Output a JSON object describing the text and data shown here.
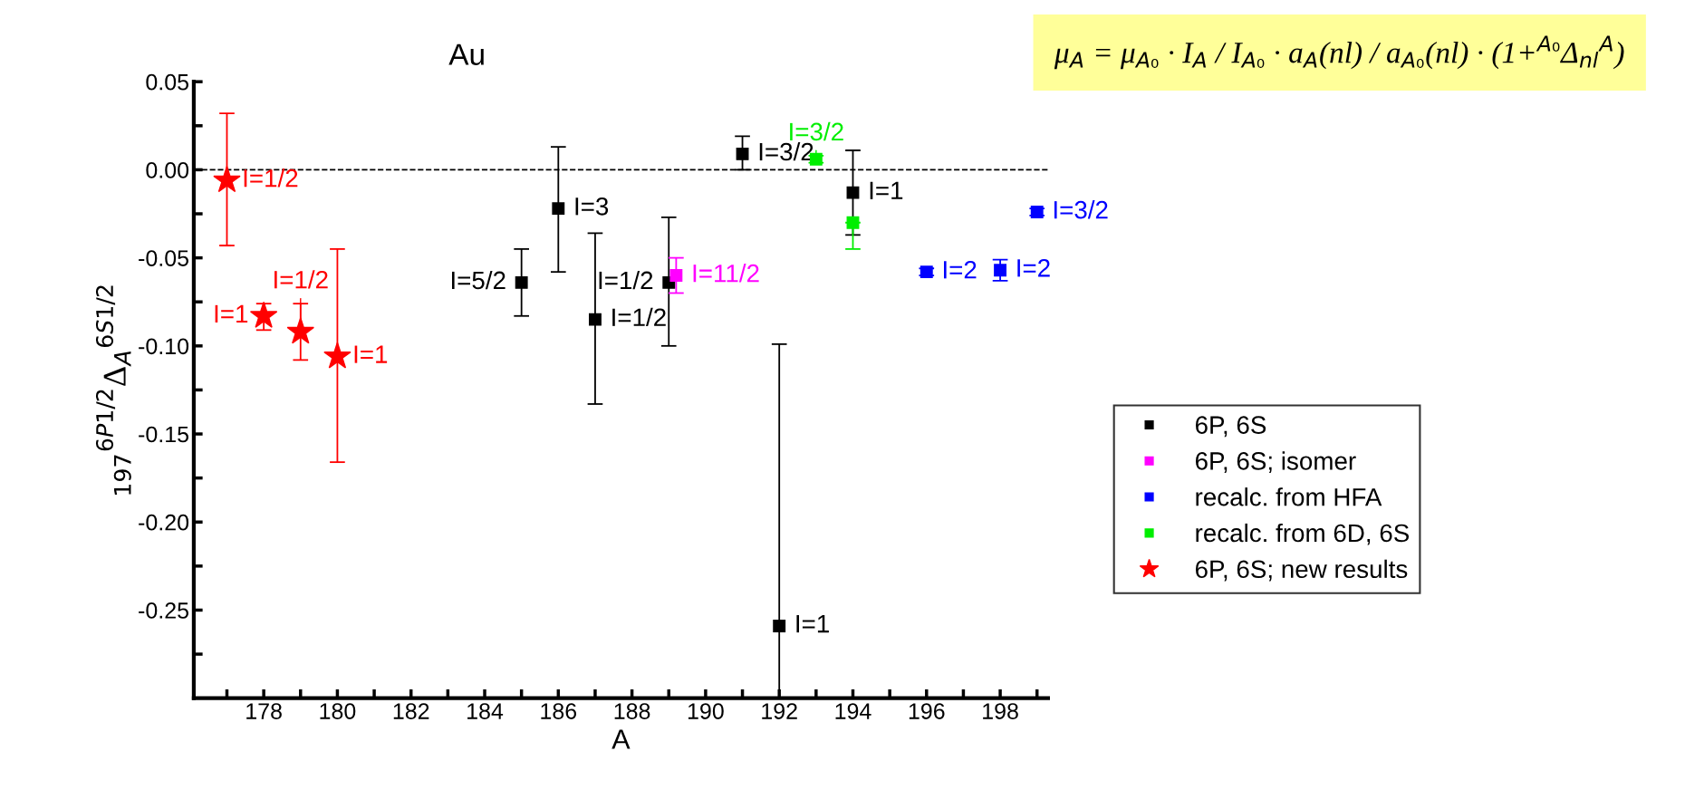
{
  "chart_data": {
    "type": "scatter",
    "title": "Au",
    "xlabel": "A",
    "ylabel": "$_{197}$$^{6P1/2}$Δ$_{A}$$^{6S1/2}$",
    "xlim": [
      176.1,
      199.3
    ],
    "ylim": [
      -0.3,
      0.05
    ],
    "xticks": [
      {
        "value": 177,
        "label": null
      },
      178,
      {
        "value": 179,
        "label": null
      },
      180,
      {
        "value": 181,
        "label": null
      },
      182,
      {
        "value": 183,
        "label": null
      },
      184,
      {
        "value": 185,
        "label": null
      },
      186,
      {
        "value": 187,
        "label": null
      },
      188,
      {
        "value": 189,
        "label": null
      },
      190,
      {
        "value": 191,
        "label": null
      },
      192,
      {
        "value": 193,
        "label": null
      },
      194,
      {
        "value": 195,
        "label": null
      },
      196,
      {
        "value": 197,
        "label": null
      },
      198,
      {
        "value": 199,
        "label": null
      }
    ],
    "yticks": [
      {
        "value": 0.05,
        "label": "0.05"
      },
      {
        "value": 0.025,
        "label": null
      },
      {
        "value": 0.0,
        "label": "0.00"
      },
      {
        "value": -0.025,
        "label": null
      },
      {
        "value": -0.05,
        "label": "-0.05"
      },
      {
        "value": -0.075,
        "label": null
      },
      {
        "value": -0.1,
        "label": "-0.10"
      },
      {
        "value": -0.125,
        "label": null
      },
      {
        "value": -0.15,
        "label": "-0.15"
      },
      {
        "value": -0.175,
        "label": null
      },
      {
        "value": -0.2,
        "label": "-0.20"
      },
      {
        "value": -0.225,
        "label": null
      },
      {
        "value": -0.25,
        "label": "-0.25"
      },
      {
        "value": -0.275,
        "label": null
      }
    ],
    "grid": false,
    "legend": "bottom right",
    "series": [
      {
        "name": "6P, 6S",
        "color": "#000000",
        "marker": "square",
        "x": [
          185,
          186,
          187,
          189,
          191,
          192,
          194
        ],
        "values": [
          -0.064,
          -0.022,
          -0.085,
          -0.064,
          0.009,
          -0.259,
          -0.013
        ],
        "errors": [
          [
            -0.083,
            -0.045
          ],
          [
            -0.058,
            0.013
          ],
          [
            -0.133,
            -0.036
          ],
          [
            -0.1,
            -0.027
          ],
          [
            0.0,
            0.019
          ],
          [
            -0.3,
            -0.099
          ],
          [
            -0.037,
            0.011
          ]
        ]
      },
      {
        "name": "6P, 6S; isomer",
        "color": "#ff00ff",
        "marker": "square",
        "x": [
          189.2
        ],
        "values": [
          -0.06
        ],
        "errors": [
          [
            -0.07,
            -0.05
          ]
        ]
      },
      {
        "name": "recalc. from HFA",
        "color": "#0000ff",
        "marker": "square",
        "x": [
          196,
          198,
          199
        ],
        "values": [
          -0.058,
          -0.057,
          -0.024
        ],
        "errors": [
          0.002,
          [
            -0.063,
            -0.051
          ],
          0.002
        ]
      },
      {
        "name": "recalc. from 6D, 6S",
        "color": "#00ee00",
        "marker": "square",
        "x": [
          193,
          194
        ],
        "values": [
          0.006,
          -0.03
        ],
        "errors": [
          0.002,
          [
            -0.045,
            -0.03
          ]
        ]
      },
      {
        "name": "6P, 6S; new results",
        "color": "#ff0000",
        "marker": "star",
        "x": [
          177,
          178,
          179,
          180
        ],
        "values": [
          -0.006,
          -0.083,
          -0.092,
          -0.106
        ],
        "errors": [
          [
            -0.043,
            0.032
          ],
          [
            -0.091,
            -0.076
          ],
          [
            -0.108,
            -0.076
          ],
          [
            -0.166,
            -0.045
          ]
        ]
      }
    ],
    "ref_lines": [
      {
        "axis": "y",
        "value": 0,
        "color": "#000000",
        "line_style": "dashed"
      }
    ],
    "annotations": [
      {
        "text": "I=1/2",
        "x": 177,
        "y": -0.006
      },
      {
        "text": "I=1",
        "x": 178,
        "y": -0.083
      },
      {
        "text": "I=1/2",
        "x": 179,
        "y": -0.092
      },
      {
        "text": "I=1",
        "x": 180,
        "y": -0.106
      },
      {
        "text": "I=5/2",
        "x": 185,
        "y": -0.064
      },
      {
        "text": "I=3",
        "x": 186,
        "y": -0.022
      },
      {
        "text": "I=1/2",
        "x": 187,
        "y": -0.085
      },
      {
        "text": "I=1/2",
        "x": 189,
        "y": -0.064
      },
      {
        "text": "I=3/2",
        "x": 191,
        "y": 0.009
      },
      {
        "text": "I=1",
        "x": 192,
        "y": -0.259
      },
      {
        "text": "I=1",
        "x": 194,
        "y": -0.013
      },
      {
        "text": "I=11/2",
        "x": 189.2,
        "y": -0.06
      },
      {
        "text": "I=2",
        "x": 196,
        "y": -0.058
      },
      {
        "text": "I=2",
        "x": 198,
        "y": -0.057
      },
      {
        "text": "I=3/2",
        "x": 199,
        "y": -0.024
      },
      {
        "text": "I=3/2",
        "x": 193,
        "y": 0.006
      },
      "μ$_{A}$ = μ$_{A₀}$ · I$_{A}$ / I$_{A₀}$ · a$_{A}$(nl) / a$_{A₀}$(nl) · (1+$^{A₀}$Δ$_{nl}$$^{A}$)"
    ]
  }
}
